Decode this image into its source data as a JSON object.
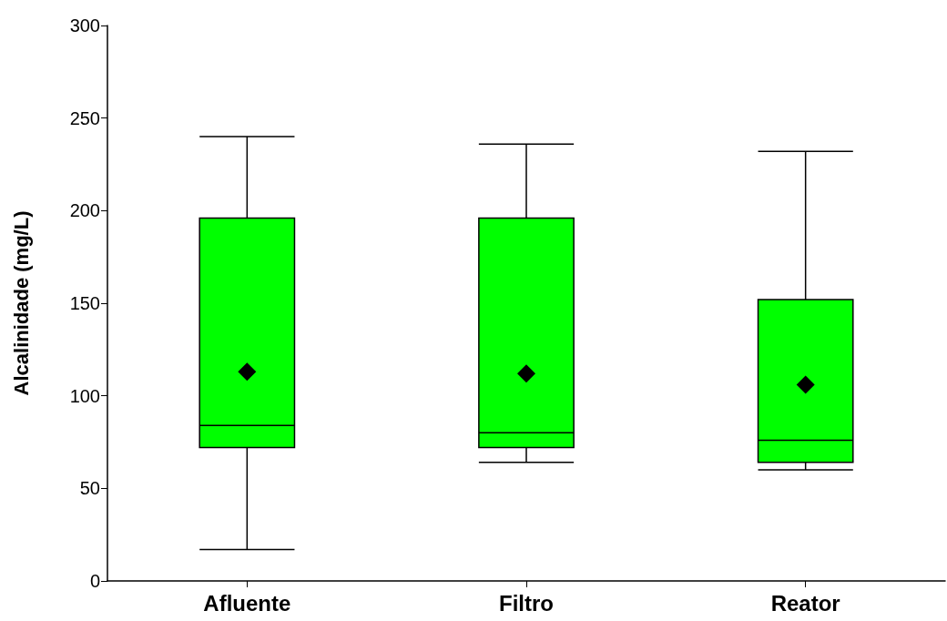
{
  "chart_data": {
    "type": "box",
    "ylabel": "Alcalinidade (mg/L)",
    "categories": [
      "Afluente",
      "Filtro",
      "Reator"
    ],
    "boxes": [
      {
        "low": 17,
        "q1": 72,
        "median": 84,
        "q3": 196,
        "high": 240,
        "mean": 113
      },
      {
        "low": 64,
        "q1": 72,
        "median": 80,
        "q3": 196,
        "high": 236,
        "mean": 112
      },
      {
        "low": 60,
        "q1": 64,
        "median": 76,
        "q3": 152,
        "high": 232,
        "mean": 106
      }
    ],
    "color": "#00ff00",
    "marker": "diamond",
    "ylim": [
      0,
      300
    ],
    "yticks": [
      0,
      50,
      100,
      150,
      200,
      250,
      300
    ],
    "grid": false
  }
}
